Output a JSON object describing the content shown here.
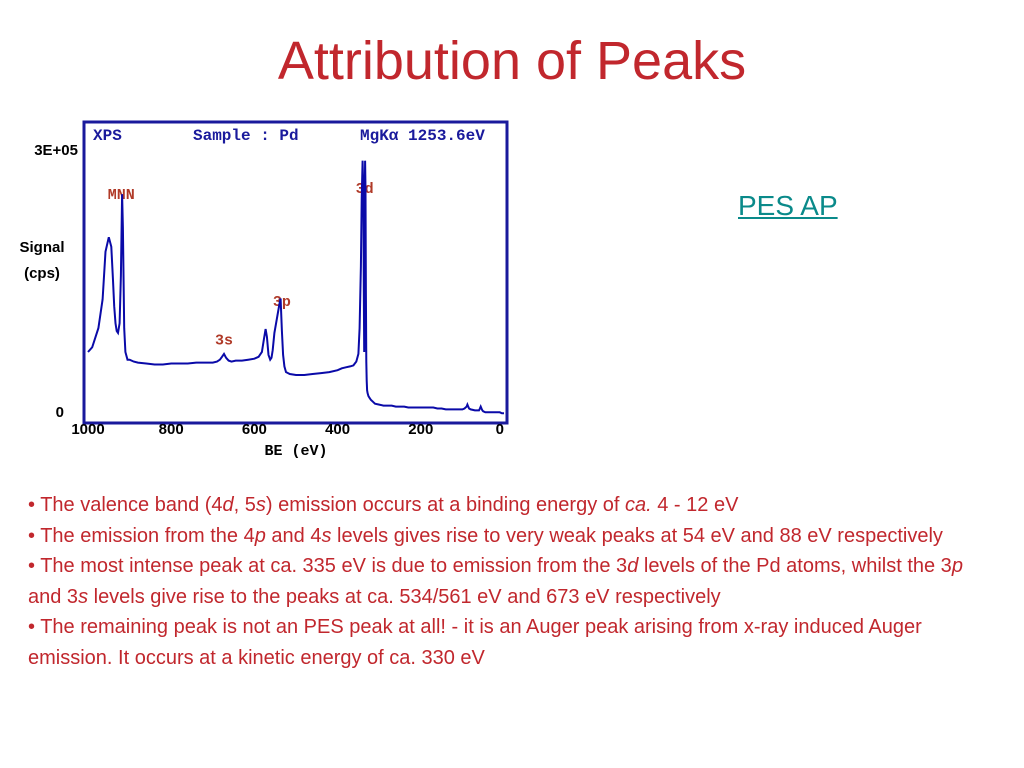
{
  "title": "Attribution of Peaks",
  "link_label": "PES AP",
  "chart_data": {
    "type": "line",
    "header": [
      "XPS",
      "Sample : Pd",
      "MgKα 1253.6eV"
    ],
    "xlabel": "BE (eV)",
    "ylabel": [
      "Signal",
      "(cps)"
    ],
    "x_reversed": true,
    "xlim": [
      1000,
      0
    ],
    "ylim": [
      0,
      300000
    ],
    "x_ticks": [
      1000,
      800,
      600,
      400,
      200,
      0
    ],
    "y_tick_labels": [
      "3E+05",
      "0"
    ],
    "annotations": [
      {
        "text": "MNN",
        "x": 920,
        "y": 230000
      },
      {
        "text": "3d",
        "x": 335,
        "y": 236000
      },
      {
        "text": "3p",
        "x": 534,
        "y": 118000
      },
      {
        "text": "3s",
        "x": 673,
        "y": 78000
      }
    ],
    "series": [
      {
        "x": [
          1000,
          990,
          975,
          965,
          958,
          950,
          944,
          940,
          937,
          934,
          931,
          928,
          924,
          921,
          918,
          916,
          913,
          910,
          905,
          900,
          890,
          880,
          860,
          840,
          820,
          800,
          780,
          760,
          740,
          720,
          700,
          690,
          683,
          678,
          673,
          668,
          662,
          655,
          645,
          630,
          615,
          600,
          590,
          582,
          577,
          573,
          570,
          566,
          562,
          559,
          556,
          552,
          546,
          540,
          537,
          534,
          531,
          528,
          524,
          515,
          500,
          480,
          460,
          440,
          420,
          400,
          390,
          380,
          370,
          362,
          355,
          350,
          347,
          344,
          342,
          340,
          338,
          337,
          336,
          335,
          334,
          333,
          332,
          331,
          330,
          329,
          328,
          326,
          323,
          320,
          315,
          310,
          300,
          290,
          280,
          270,
          260,
          250,
          240,
          230,
          220,
          210,
          200,
          190,
          180,
          170,
          160,
          150,
          140,
          130,
          120,
          110,
          100,
          95,
          90,
          88,
          86,
          84,
          80,
          70,
          60,
          58,
          56,
          54,
          52,
          50,
          45,
          40,
          30,
          20,
          10,
          5,
          0
        ],
        "y": [
          70000,
          75000,
          95000,
          125000,
          175000,
          190000,
          180000,
          145000,
          118000,
          100000,
          92000,
          90000,
          100000,
          150000,
          235000,
          200000,
          95000,
          70000,
          62000,
          62000,
          60000,
          59000,
          58000,
          57000,
          57000,
          58000,
          58000,
          58000,
          59000,
          59000,
          59000,
          60000,
          62000,
          65000,
          68000,
          64000,
          61000,
          60000,
          61000,
          61000,
          62000,
          63000,
          65000,
          70000,
          84000,
          94000,
          86000,
          67000,
          62000,
          64000,
          72000,
          90000,
          105000,
          120000,
          126000,
          92000,
          67000,
          55000,
          49000,
          47000,
          46000,
          46000,
          47000,
          48000,
          49000,
          51000,
          53000,
          54000,
          55000,
          56000,
          60000,
          68000,
          95000,
          160000,
          230000,
          270000,
          235000,
          135000,
          70000,
          215000,
          270000,
          240000,
          130000,
          60000,
          40000,
          30000,
          27000,
          24000,
          22000,
          20000,
          18000,
          16000,
          15000,
          14000,
          14000,
          14000,
          13000,
          13000,
          13000,
          12000,
          12000,
          12000,
          12000,
          12000,
          12000,
          12000,
          11000,
          11000,
          10000,
          10000,
          10000,
          10000,
          10000,
          11000,
          13000,
          15000,
          13000,
          11000,
          10000,
          9000,
          9000,
          11000,
          13000,
          11000,
          9000,
          8000,
          7000,
          7000,
          7000,
          7000,
          7000,
          6000,
          6000
        ]
      }
    ],
    "colors": {
      "frame": "#1a1a9c",
      "line": "#0a0aa8",
      "peak_label": "#b03a28",
      "axis_text": "#000000"
    }
  },
  "bullets": [
    [
      "• The valence band (4",
      {
        "i": "d"
      },
      ", 5",
      {
        "i": "s"
      },
      ") emission occurs at a binding energy of ",
      {
        "i": "ca."
      },
      " 4 - 12 eV"
    ],
    [
      "• The emission from the 4",
      {
        "i": "p"
      },
      " and 4",
      {
        "i": "s"
      },
      " levels gives rise to very weak peaks at 54 eV and 88 eV respectively"
    ],
    [
      "• The most intense peak at ca. 335 eV is due to emission from the 3",
      {
        "i": "d"
      },
      " levels of the Pd atoms, whilst the 3",
      {
        "i": "p"
      },
      " and 3",
      {
        "i": "s"
      },
      " levels give rise to the peaks at ca. 534/561 eV and 673 eV respectively"
    ],
    [
      "• The remaining peak is not an PES peak at all! - it is an Auger peak arising from x-ray induced Auger emission. It occurs at a kinetic energy of ca. 330 eV"
    ]
  ]
}
